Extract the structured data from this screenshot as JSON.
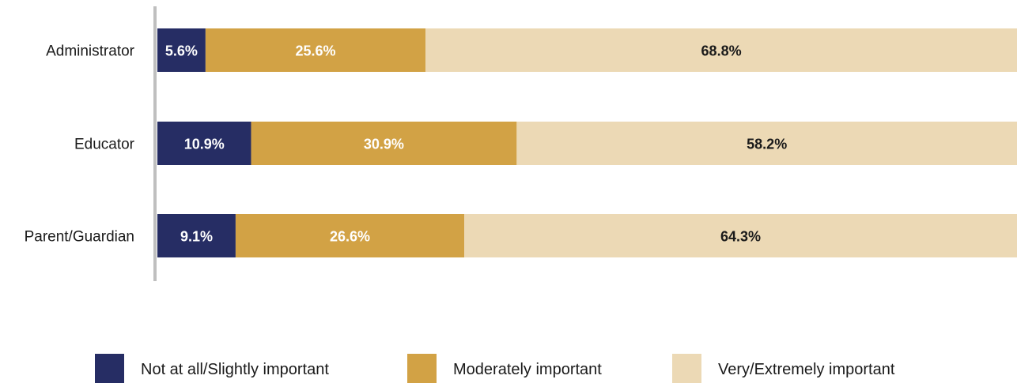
{
  "chart_data": {
    "type": "bar",
    "orientation": "horizontal",
    "stacked": true,
    "categories": [
      "Administrator",
      "Educator",
      "Parent/Guardian"
    ],
    "series": [
      {
        "name": "Not at all/Slightly important",
        "color": "#262d64",
        "label_color": "#ffffff",
        "values": [
          5.6,
          10.9,
          9.1
        ],
        "labels": [
          "5.6%",
          "10.9%",
          "9.1%"
        ]
      },
      {
        "name": "Moderately important",
        "color": "#d2a245",
        "label_color": "#ffffff",
        "values": [
          25.6,
          30.9,
          26.6
        ],
        "labels": [
          "25.6%",
          "30.9%",
          "26.6%"
        ]
      },
      {
        "name": "Very/Extremely important",
        "color": "#ecd9b5",
        "label_color": "#1a1a1a",
        "values": [
          68.8,
          58.2,
          64.3
        ],
        "labels": [
          "68.8%",
          "58.2%",
          "64.3%"
        ]
      }
    ],
    "xlim": [
      0,
      100
    ],
    "unit": "%",
    "grid": false,
    "legend_position": "bottom",
    "axis_color": "#bfbfbf"
  }
}
